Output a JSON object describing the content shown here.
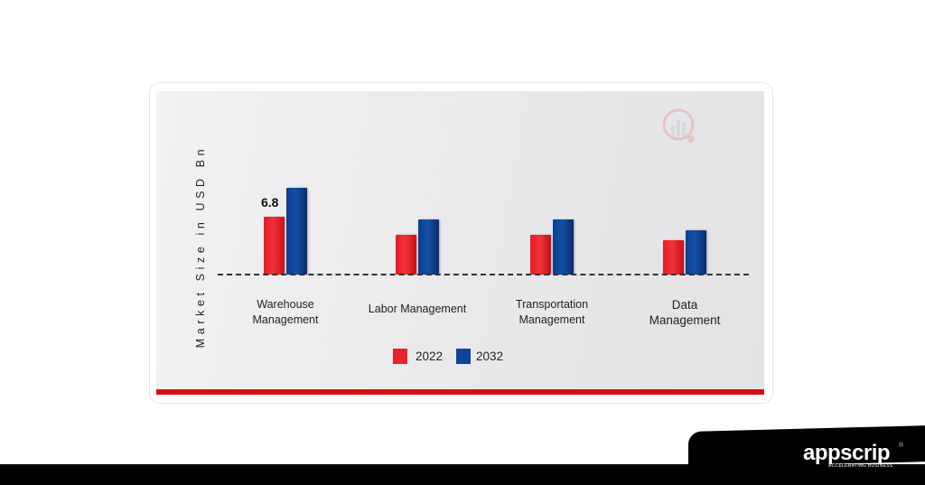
{
  "chart_data": {
    "type": "bar",
    "title": "",
    "xlabel": "",
    "ylabel": "Market Size in USD Bn",
    "categories": [
      "Warehouse Management",
      "Labor Management",
      "Transportation Management",
      "Data Management"
    ],
    "category_lines": [
      [
        "Warehouse",
        "Management"
      ],
      [
        "Labor Management"
      ],
      [
        "Transportation",
        "Management"
      ],
      [
        "Data",
        "Management"
      ]
    ],
    "series": [
      {
        "name": "2022",
        "color": "#e8232b",
        "values": [
          6.8,
          4.7,
          4.7,
          4.0
        ]
      },
      {
        "name": "2032",
        "color": "#0f4596",
        "values": [
          10.2,
          6.5,
          6.5,
          5.2
        ]
      }
    ],
    "annotations": [
      {
        "category": "Warehouse Management",
        "series": "2022",
        "text": "6.8"
      }
    ],
    "legend_position": "bottom",
    "grid": false,
    "ylim": [
      0,
      12
    ]
  },
  "legend": {
    "items": [
      {
        "label": "2022",
        "color": "#e8232b"
      },
      {
        "label": "2032",
        "color": "#0f4596"
      }
    ]
  },
  "annotation_label": "6.8",
  "brand": {
    "name": "appscrip",
    "tagline": "ACCELERATING BUSINESS",
    "reg": "®"
  },
  "colors": {
    "accent_red": "#d40f14",
    "footer": "#000000"
  }
}
